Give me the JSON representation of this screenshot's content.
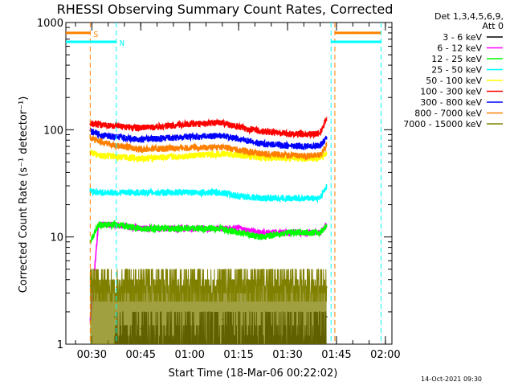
{
  "chart_data": {
    "type": "line",
    "title": "RHESSI Observing Summary Count Rates, Corrected",
    "xlabel": "Start Time (18-Mar-06 00:22:02)",
    "ylabel": "Corrected Count Rate (s⁻¹ detector⁻¹)",
    "y_scale": "log",
    "ylim": [
      1,
      1000
    ],
    "xlim": [
      "00:22:02",
      "02:02:00"
    ],
    "x_ticks": [
      "00:30",
      "00:45",
      "01:00",
      "01:15",
      "01:30",
      "01:45",
      "02:00"
    ],
    "y_ticks": [
      "1",
      "10",
      "100",
      "1000"
    ],
    "grid": false,
    "legend_position": "top-right",
    "legend_header": [
      "Det 1,3,4,5,6,9,",
      "Att 0"
    ],
    "footer_date": "14-Oct-2021 09:30",
    "markers": [
      {
        "label": "S",
        "color": "#ff8000",
        "x_start": "00:22:02",
        "x_end": "00:29:30",
        "level": 800
      },
      {
        "label": "N",
        "color": "#00ffff",
        "x_start": "00:22:02",
        "x_end": "00:37:30",
        "level": 660
      },
      {
        "label": "",
        "color": "#ff8000",
        "x_start": "01:44:30",
        "x_end": "01:58:40",
        "level": 800
      },
      {
        "label": "",
        "color": "#00ffff",
        "x_start": "01:43:20",
        "x_end": "01:58:40",
        "level": 660
      }
    ],
    "x": [
      "00:29:30",
      "00:32:00",
      "00:37:00",
      "00:45:00",
      "01:00:00",
      "01:10:00",
      "01:15:00",
      "01:22:00",
      "01:30:00",
      "01:36:00",
      "01:40:00",
      "01:42:00"
    ],
    "series": [
      {
        "name": "3 - 6 keV",
        "color": "#000000",
        "values": [
          null,
          null,
          1.8,
          1.4,
          1.5,
          1.7,
          1.5,
          1.6,
          1.7,
          1.5,
          1.6,
          1.8
        ]
      },
      {
        "name": "6 - 12 keV",
        "color": "#ff00ff",
        "values": [
          1.6,
          13,
          13,
          12,
          12,
          12,
          12,
          11,
          11,
          11,
          11,
          13
        ]
      },
      {
        "name": "12 - 25 keV",
        "color": "#00ff00",
        "values": [
          9,
          13,
          13,
          12,
          12,
          12,
          11,
          10,
          11,
          11,
          11,
          13
        ]
      },
      {
        "name": "25 - 50 keV",
        "color": "#00ffff",
        "values": [
          27,
          26,
          26,
          26,
          26,
          26,
          24,
          23,
          23,
          23,
          23,
          30
        ]
      },
      {
        "name": "50 - 100 keV",
        "color": "#ffff00",
        "values": [
          62,
          58,
          56,
          54,
          57,
          60,
          58,
          55,
          55,
          54,
          55,
          60
        ]
      },
      {
        "name": "100 - 300 keV",
        "color": "#ff0000",
        "values": [
          115,
          112,
          108,
          104,
          113,
          116,
          106,
          97,
          92,
          91,
          93,
          130
        ]
      },
      {
        "name": "300 - 800 keV",
        "color": "#0000ff",
        "values": [
          98,
          90,
          86,
          81,
          86,
          88,
          82,
          74,
          71,
          70,
          71,
          85
        ]
      },
      {
        "name": "800 - 7000 keV",
        "color": "#ff8000",
        "values": [
          85,
          78,
          72,
          66,
          68,
          69,
          65,
          60,
          58,
          57,
          58,
          72
        ]
      },
      {
        "name": "7000 - 15000 keV",
        "color": "#808000",
        "values": [
          3.5,
          3,
          3.2,
          3.3,
          3.6,
          3.5,
          3.4,
          3.5,
          3.3,
          3.2,
          3.3,
          3.4
        ]
      }
    ]
  }
}
